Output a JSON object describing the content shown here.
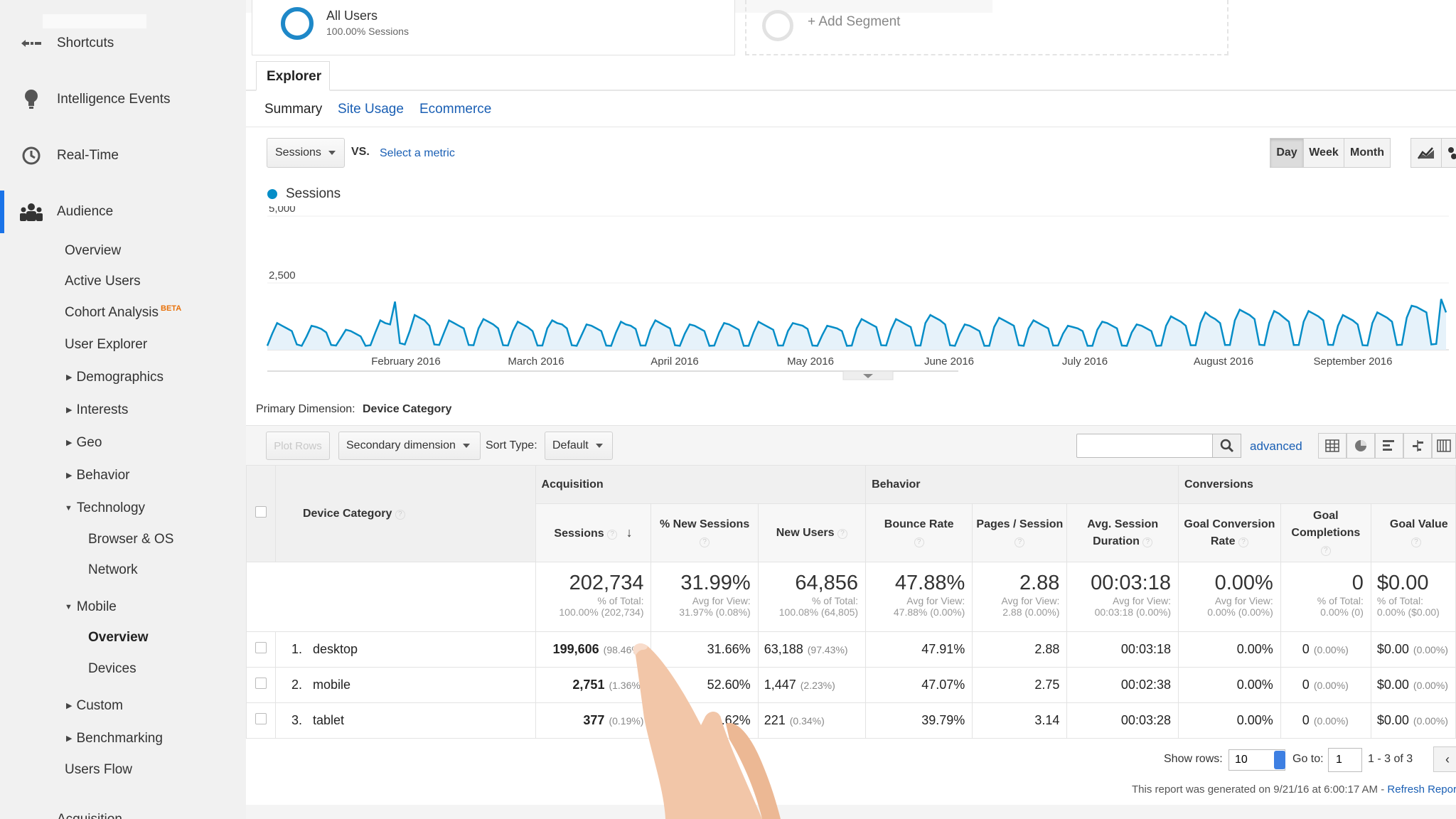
{
  "sidebar": {
    "top_items": [
      {
        "label": "Shortcuts",
        "icon": "shortcut-arrow-icon"
      },
      {
        "label": "Intelligence Events",
        "icon": "lightbulb-icon"
      },
      {
        "label": "Real-Time",
        "icon": "clock-icon"
      },
      {
        "label": "Audience",
        "icon": "people-icon",
        "active": true
      }
    ],
    "audience": {
      "overview": "Overview",
      "active_users": "Active Users",
      "cohort": "Cohort Analysis",
      "cohort_badge": "BETA",
      "user_explorer": "User Explorer",
      "demographics": "Demographics",
      "interests": "Interests",
      "geo": "Geo",
      "behavior": "Behavior",
      "technology": "Technology",
      "browser_os": "Browser & OS",
      "network": "Network",
      "mobile": "Mobile",
      "mobile_overview": "Overview",
      "devices": "Devices",
      "custom": "Custom",
      "benchmarking": "Benchmarking",
      "users_flow": "Users Flow",
      "acquisition": "Acquisition"
    }
  },
  "segments": {
    "current_name": "All Users",
    "current_sub": "100.00% Sessions",
    "add_label": "+ Add Segment"
  },
  "explorer": {
    "tab": "Explorer",
    "subtabs": [
      "Summary",
      "Site Usage",
      "Ecommerce"
    ]
  },
  "metric": {
    "selected": "Sessions",
    "vs": "VS.",
    "select_label": "Select a metric"
  },
  "granularity": [
    "Day",
    "Week",
    "Month"
  ],
  "granularity_active": "Day",
  "chart_data": {
    "type": "area",
    "series": [
      {
        "name": "Sessions",
        "color": "#058dc7"
      }
    ],
    "y_ticks": [
      "5,000",
      "2,500"
    ],
    "ylim": [
      0,
      5000
    ],
    "x_labels": [
      "February 2016",
      "March 2016",
      "April 2016",
      "May 2016",
      "June 2016",
      "July 2016",
      "August 2016",
      "September 2016"
    ],
    "daily_pattern": "weekly cycle, weekday peaks ~1,000-1,900, weekend lows ~150, final spike ~1,900 in September 2016",
    "values": [
      150,
      600,
      1000,
      900,
      800,
      700,
      200,
      150,
      500,
      900,
      850,
      780,
      650,
      180,
      160,
      450,
      750,
      700,
      600,
      500,
      150,
      170,
      650,
      1100,
      1000,
      950,
      1800,
      250,
      200,
      700,
      1300,
      1200,
      1100,
      900,
      200,
      180,
      650,
      1100,
      1000,
      900,
      800,
      180,
      170,
      800,
      1150,
      1050,
      950,
      800,
      170,
      160,
      700,
      1050,
      950,
      850,
      700,
      160,
      160,
      800,
      1100,
      1000,
      950,
      800,
      170,
      150,
      550,
      950,
      900,
      800,
      700,
      160,
      150,
      650,
      1050,
      950,
      900,
      780,
      160,
      160,
      750,
      1100,
      1000,
      900,
      800,
      170,
      150,
      600,
      950,
      900,
      800,
      700,
      150,
      160,
      650,
      1000,
      950,
      850,
      750,
      150,
      150,
      650,
      1050,
      950,
      850,
      750,
      160,
      160,
      700,
      1000,
      950,
      900,
      780,
      160,
      150,
      550,
      900,
      850,
      800,
      700,
      150,
      160,
      800,
      1150,
      1050,
      950,
      850,
      170,
      160,
      750,
      1150,
      1050,
      950,
      850,
      160,
      160,
      1000,
      1300,
      1200,
      1100,
      950,
      170,
      150,
      600,
      950,
      900,
      800,
      700,
      150,
      150,
      850,
      1200,
      1100,
      1000,
      900,
      170,
      150,
      800,
      1100,
      1000,
      900,
      800,
      160,
      160,
      600,
      900,
      850,
      800,
      700,
      150,
      150,
      750,
      1050,
      1000,
      900,
      800,
      160,
      150,
      650,
      950,
      900,
      800,
      700,
      150,
      160,
      900,
      1250,
      1150,
      1050,
      900,
      170,
      170,
      1000,
      1400,
      1250,
      1150,
      1000,
      180,
      180,
      1100,
      1500,
      1400,
      1300,
      1150,
      190,
      170,
      1000,
      1450,
      1350,
      1200,
      1050,
      180,
      180,
      1050,
      1450,
      1350,
      1250,
      1100,
      190,
      180,
      900,
      1300,
      1200,
      1100,
      950,
      170,
      160,
      1000,
      1400,
      1300,
      1200,
      1050,
      180,
      190,
      1200,
      1650,
      1600,
      1500,
      1400,
      200,
      220,
      1900,
      1400
    ]
  },
  "primary_dimension": {
    "label": "Primary Dimension:",
    "value": "Device Category"
  },
  "toolbar": {
    "plot_rows": "Plot Rows",
    "secondary": "Secondary dimension",
    "sort_type_label": "Sort Type:",
    "sort_type_value": "Default",
    "search_placeholder": "",
    "advanced": "advanced"
  },
  "table": {
    "groups": [
      "Acquisition",
      "Behavior",
      "Conversions"
    ],
    "dimension_header": "Device Category",
    "columns": [
      "Sessions",
      "% New Sessions",
      "New Users",
      "Bounce Rate",
      "Pages / Session",
      "Avg. Session Duration",
      "Goal Conversion Rate",
      "Goal Completions",
      "Goal Value"
    ],
    "totals": [
      {
        "value": "202,734",
        "sub1": "% of Total:",
        "sub2": "100.00% (202,734)"
      },
      {
        "value": "31.99%",
        "sub1": "Avg for View:",
        "sub2": "31.97% (0.08%)"
      },
      {
        "value": "64,856",
        "sub1": "% of Total:",
        "sub2": "100.08% (64,805)"
      },
      {
        "value": "47.88%",
        "sub1": "Avg for View:",
        "sub2": "47.88% (0.00%)"
      },
      {
        "value": "2.88",
        "sub1": "Avg for View:",
        "sub2": "2.88 (0.00%)"
      },
      {
        "value": "00:03:18",
        "sub1": "Avg for View:",
        "sub2": "00:03:18 (0.00%)"
      },
      {
        "value": "0.00%",
        "sub1": "Avg for View:",
        "sub2": "0.00% (0.00%)"
      },
      {
        "value": "0",
        "sub1": "% of Total:",
        "sub2": "0.00% (0)"
      },
      {
        "value": "$0.00",
        "sub1": "% of Total:",
        "sub2": "0.00% ($0.00)"
      }
    ],
    "rows": [
      {
        "num": "1.",
        "device": "desktop",
        "sessions": "199,606",
        "sessions_pct": "(98.46%)",
        "new_sessions": "31.66%",
        "new_users": "63,188",
        "new_users_pct": "(97.43%)",
        "bounce": "47.91%",
        "pages": "2.88",
        "duration": "00:03:18",
        "conv": "0.00%",
        "completions": "0",
        "completions_pct": "(0.00%)",
        "goal_value": "$0.00",
        "goal_value_pct": "(0.00%)"
      },
      {
        "num": "2.",
        "device": "mobile",
        "sessions": "2,751",
        "sessions_pct": "(1.36%)",
        "new_sessions": "52.60%",
        "new_users": "1,447",
        "new_users_pct": "(2.23%)",
        "bounce": "47.07%",
        "pages": "2.75",
        "duration": "00:02:38",
        "conv": "0.00%",
        "completions": "0",
        "completions_pct": "(0.00%)",
        "goal_value": "$0.00",
        "goal_value_pct": "(0.00%)"
      },
      {
        "num": "3.",
        "device": "tablet",
        "sessions": "377",
        "sessions_pct": "(0.19%)",
        "new_sessions": "58.62%",
        "new_users": "221",
        "new_users_pct": "(0.34%)",
        "bounce": "39.79%",
        "pages": "3.14",
        "duration": "00:03:28",
        "conv": "0.00%",
        "completions": "0",
        "completions_pct": "(0.00%)",
        "goal_value": "$0.00",
        "goal_value_pct": "(0.00%)"
      }
    ]
  },
  "footer": {
    "show_rows_label": "Show rows:",
    "show_rows_value": "10",
    "goto_label": "Go to:",
    "goto_value": "1",
    "range": "1 - 3 of 3",
    "generated": "This report was generated on 9/21/16 at 6:00:17 AM - ",
    "refresh": "Refresh Report"
  },
  "colors": {
    "accent": "#1a73e8",
    "series": "#058dc7",
    "link": "#1a5fb4"
  }
}
